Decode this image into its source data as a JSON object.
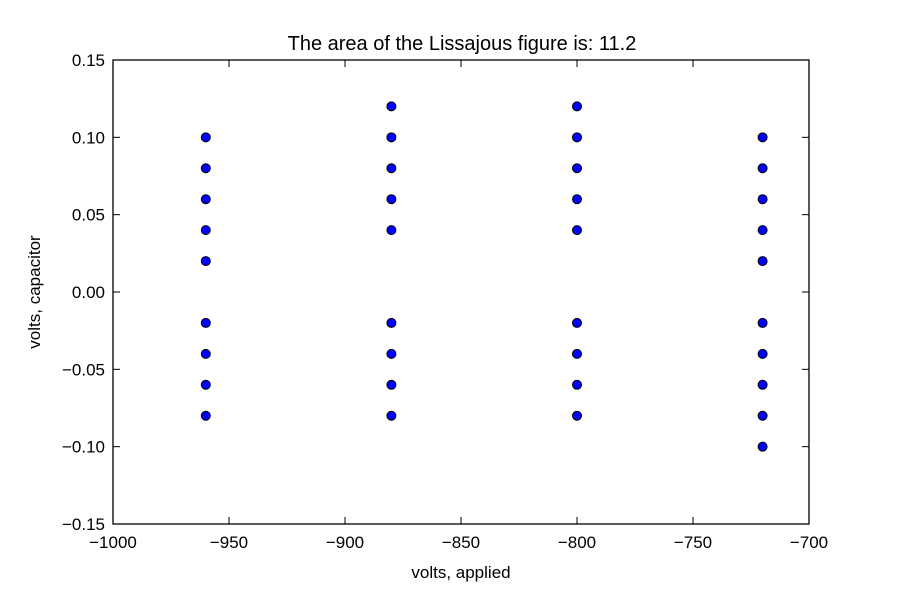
{
  "chart_data": {
    "type": "scatter",
    "title": "The area of the Lissajous figure is: 11.2",
    "xlabel": "volts, applied",
    "ylabel": "volts, capacitor",
    "xlim": [
      -1000,
      -700
    ],
    "ylim": [
      -0.15,
      0.15
    ],
    "xticks": [
      -1000,
      -950,
      -900,
      -850,
      -800,
      -750,
      -700
    ],
    "yticks": [
      -0.15,
      -0.1,
      -0.05,
      0.0,
      0.05,
      0.1,
      0.15
    ],
    "xtick_labels": [
      "−1000",
      "−950",
      "−900",
      "−850",
      "−800",
      "−750",
      "−700"
    ],
    "ytick_labels": [
      "−0.15",
      "−0.10",
      "−0.05",
      "0.00",
      "0.05",
      "0.10",
      "0.15"
    ],
    "grid": false,
    "marker_color": "#0000ff",
    "points": [
      {
        "x": -960,
        "y": 0.1
      },
      {
        "x": -960,
        "y": 0.08
      },
      {
        "x": -960,
        "y": 0.06
      },
      {
        "x": -960,
        "y": 0.04
      },
      {
        "x": -960,
        "y": 0.02
      },
      {
        "x": -960,
        "y": -0.02
      },
      {
        "x": -960,
        "y": -0.04
      },
      {
        "x": -960,
        "y": -0.06
      },
      {
        "x": -960,
        "y": -0.08
      },
      {
        "x": -880,
        "y": 0.12
      },
      {
        "x": -880,
        "y": 0.1
      },
      {
        "x": -880,
        "y": 0.08
      },
      {
        "x": -880,
        "y": 0.06
      },
      {
        "x": -880,
        "y": 0.04
      },
      {
        "x": -880,
        "y": -0.02
      },
      {
        "x": -880,
        "y": -0.04
      },
      {
        "x": -880,
        "y": -0.06
      },
      {
        "x": -880,
        "y": -0.08
      },
      {
        "x": -800,
        "y": 0.12
      },
      {
        "x": -800,
        "y": 0.1
      },
      {
        "x": -800,
        "y": 0.08
      },
      {
        "x": -800,
        "y": 0.06
      },
      {
        "x": -800,
        "y": 0.04
      },
      {
        "x": -800,
        "y": -0.02
      },
      {
        "x": -800,
        "y": -0.04
      },
      {
        "x": -800,
        "y": -0.06
      },
      {
        "x": -800,
        "y": -0.08
      },
      {
        "x": -720,
        "y": 0.1
      },
      {
        "x": -720,
        "y": 0.08
      },
      {
        "x": -720,
        "y": 0.06
      },
      {
        "x": -720,
        "y": 0.04
      },
      {
        "x": -720,
        "y": 0.02
      },
      {
        "x": -720,
        "y": -0.02
      },
      {
        "x": -720,
        "y": -0.04
      },
      {
        "x": -720,
        "y": -0.06
      },
      {
        "x": -720,
        "y": -0.08
      },
      {
        "x": -720,
        "y": -0.1
      }
    ]
  }
}
